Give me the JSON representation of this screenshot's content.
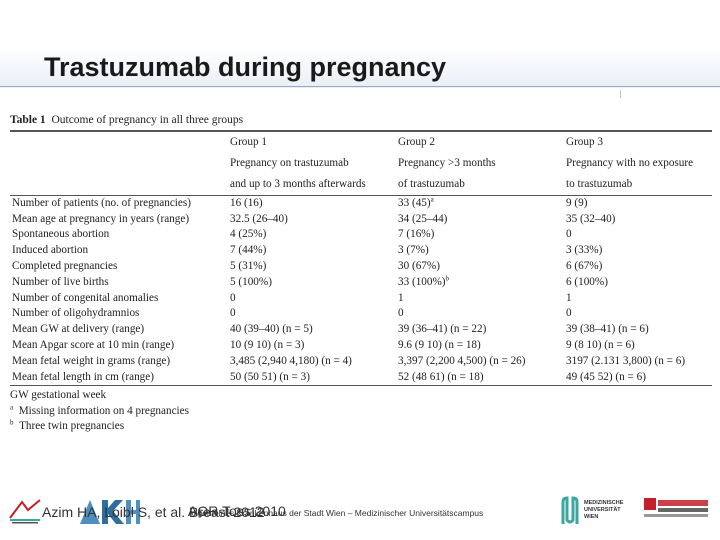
{
  "slide": {
    "title": "Trastuzumab during pregnancy"
  },
  "table": {
    "caption_label": "Table 1",
    "caption_text": "Outcome of pregnancy in all three groups",
    "header": [
      [
        "",
        "Group 1",
        "Group 2",
        "Group 3"
      ],
      [
        "",
        "Pregnancy on trastuzumab",
        "Pregnancy >3 months",
        "Pregnancy with no exposure"
      ],
      [
        "",
        "and up to 3 months afterwards",
        "of trastuzumab",
        "to trastuzumab"
      ]
    ],
    "rows": [
      {
        "label": "Number of patients (no. of pregnancies)",
        "g1": "16 (16)",
        "g2": "33 (45)",
        "g2_sup": "a",
        "g3": "9 (9)"
      },
      {
        "label": "Mean age at pregnancy in years (range)",
        "g1": "32.5 (26–40)",
        "g2": "34 (25–44)",
        "g3": "35 (32–40)"
      },
      {
        "label": "Spontaneous abortion",
        "g1": "4 (25%)",
        "g2": "7 (16%)",
        "g3": "0"
      },
      {
        "label": "Induced abortion",
        "g1": "7 (44%)",
        "g2": "3 (7%)",
        "g3": "3 (33%)"
      },
      {
        "label": "Completed pregnancies",
        "g1": "5 (31%)",
        "g2": "30 (67%)",
        "g3": "6 (67%)"
      },
      {
        "label": "Number of live births",
        "g1": "5 (100%)",
        "g2": "33 (100%)",
        "g2_sup": "b",
        "g3": "6 (100%)"
      },
      {
        "label": "Number of congenital anomalies",
        "g1": "0",
        "g2": "1",
        "g3": "1"
      },
      {
        "label": "Number of oligohydramnios",
        "g1": "0",
        "g2": "0",
        "g3": "0"
      },
      {
        "label": "Mean GW at delivery (range)",
        "g1": "40 (39–40) (n = 5)",
        "g2": "39 (36–41) (n = 22)",
        "g3": "39 (38–41) (n = 6)"
      },
      {
        "label": "Mean Apgar score at 10 min (range)",
        "g1": "10 (9 10) (n = 3)",
        "g2": "9.6 (9 10) (n = 18)",
        "g3": "9 (8 10) (n = 6)"
      },
      {
        "label": "Mean fetal weight in grams (range)",
        "g1": "3,485 (2,940 4,180) (n = 4)",
        "g2": "3,397 (2,200 4,500) (n = 26)",
        "g3": "3197 (2.131 3,800) (n = 6)"
      },
      {
        "label": "Mean fetal length in cm (range)",
        "g1": "50 (50 51) (n = 3)",
        "g2": "52 (48 61) (n = 18)",
        "g3": "49 (45 52) (n = 6)"
      }
    ],
    "notes": [
      {
        "mark": "",
        "text": "GW gestational week"
      },
      {
        "mark": "a",
        "text": "Missing information on 4 pregnancies"
      },
      {
        "mark": "b",
        "text": "Three twin pregnancies"
      }
    ]
  },
  "footer": {
    "author": "Azim HA, Loibl S, et al. Breast 2012",
    "journal": "AOR Toss 2010",
    "institution": "Allgemeines Krankenhaus der Stadt Wien – Medizinischer Universitätscampus",
    "mu_logo_lines": [
      "MEDIZINISCHE",
      "UNIVERSITÄT",
      "WIEN"
    ]
  },
  "colors": {
    "header_gradient": "#e9eef6",
    "title_rule": "#9aa9c4",
    "logo_green": "#3aa7a0",
    "mu_blue": "#1a4f8a",
    "qa_red": "#c41e2a"
  }
}
